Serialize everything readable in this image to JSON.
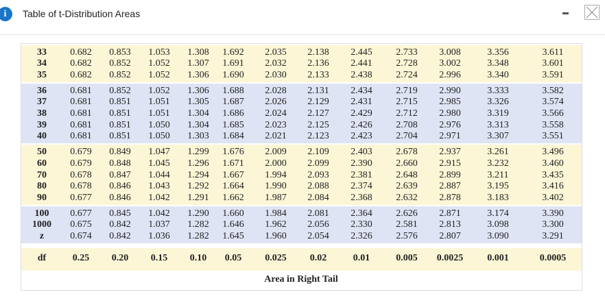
{
  "header": {
    "icon": "i",
    "title": "Table of t-Distribution Areas"
  },
  "table": {
    "groups": [
      {
        "rows": [
          {
            "df": "33",
            "values": [
              "0.682",
              "0.853",
              "1.053",
              "1.308",
              "1.692",
              "2.035",
              "2.138",
              "2.445",
              "2.733",
              "3.008",
              "3.356",
              "3.611"
            ]
          },
          {
            "df": "34",
            "values": [
              "0.682",
              "0.852",
              "1.052",
              "1.307",
              "1.691",
              "2.032",
              "2.136",
              "2.441",
              "2.728",
              "3.002",
              "3.348",
              "3.601"
            ]
          },
          {
            "df": "35",
            "values": [
              "0.682",
              "0.852",
              "1.052",
              "1.306",
              "1.690",
              "2.030",
              "2.133",
              "2.438",
              "2.724",
              "2.996",
              "3.340",
              "3.591"
            ]
          }
        ]
      },
      {
        "rows": [
          {
            "df": "36",
            "values": [
              "0.681",
              "0.852",
              "1.052",
              "1.306",
              "1.688",
              "2.028",
              "2.131",
              "2.434",
              "2.719",
              "2.990",
              "3.333",
              "3.582"
            ]
          },
          {
            "df": "37",
            "values": [
              "0.681",
              "0.851",
              "1.051",
              "1.305",
              "1.687",
              "2.026",
              "2.129",
              "2.431",
              "2.715",
              "2.985",
              "3.326",
              "3.574"
            ]
          },
          {
            "df": "38",
            "values": [
              "0.681",
              "0.851",
              "1.051",
              "1.304",
              "1.686",
              "2.024",
              "2.127",
              "2.429",
              "2.712",
              "2.980",
              "3.319",
              "3.566"
            ]
          },
          {
            "df": "39",
            "values": [
              "0.681",
              "0.851",
              "1.050",
              "1.304",
              "1.685",
              "2.023",
              "2.125",
              "2.426",
              "2.708",
              "2.976",
              "3.313",
              "3.558"
            ]
          },
          {
            "df": "40",
            "values": [
              "0.681",
              "0.851",
              "1.050",
              "1.303",
              "1.684",
              "2.021",
              "2.123",
              "2.423",
              "2.704",
              "2.971",
              "3.307",
              "3.551"
            ]
          }
        ]
      },
      {
        "rows": [
          {
            "df": "50",
            "values": [
              "0.679",
              "0.849",
              "1.047",
              "1.299",
              "1.676",
              "2.009",
              "2.109",
              "2.403",
              "2.678",
              "2.937",
              "3.261",
              "3.496"
            ]
          },
          {
            "df": "60",
            "values": [
              "0.679",
              "0.848",
              "1.045",
              "1.296",
              "1.671",
              "2.000",
              "2.099",
              "2.390",
              "2.660",
              "2.915",
              "3.232",
              "3.460"
            ]
          },
          {
            "df": "70",
            "values": [
              "0.678",
              "0.847",
              "1.044",
              "1.294",
              "1.667",
              "1.994",
              "2.093",
              "2.381",
              "2.648",
              "2.899",
              "3.211",
              "3.435"
            ]
          },
          {
            "df": "80",
            "values": [
              "0.678",
              "0.846",
              "1.043",
              "1.292",
              "1.664",
              "1.990",
              "2.088",
              "2.374",
              "2.639",
              "2.887",
              "3.195",
              "3.416"
            ]
          },
          {
            "df": "90",
            "values": [
              "0.677",
              "0.846",
              "1.042",
              "1.291",
              "1.662",
              "1.987",
              "2.084",
              "2.368",
              "2.632",
              "2.878",
              "3.183",
              "3.402"
            ]
          }
        ]
      },
      {
        "rows": [
          {
            "df": "100",
            "values": [
              "0.677",
              "0.845",
              "1.042",
              "1.290",
              "1.660",
              "1.984",
              "2.081",
              "2.364",
              "2.626",
              "2.871",
              "3.174",
              "3.390"
            ]
          },
          {
            "df": "1000",
            "values": [
              "0.675",
              "0.842",
              "1.037",
              "1.282",
              "1.646",
              "1.962",
              "2.056",
              "2.330",
              "2.581",
              "2.813",
              "3.098",
              "3.300"
            ]
          },
          {
            "df": "z",
            "values": [
              "0.674",
              "0.842",
              "1.036",
              "1.282",
              "1.645",
              "1.960",
              "2.054",
              "2.326",
              "2.576",
              "2.807",
              "3.090",
              "3.291"
            ]
          }
        ]
      }
    ],
    "footer": {
      "label": "df",
      "areas": [
        "0.25",
        "0.20",
        "0.15",
        "0.10",
        "0.05",
        "0.025",
        "0.02",
        "0.01",
        "0.005",
        "0.0025",
        "0.001",
        "0.0005"
      ]
    },
    "caption": "Area in Right Tail"
  }
}
